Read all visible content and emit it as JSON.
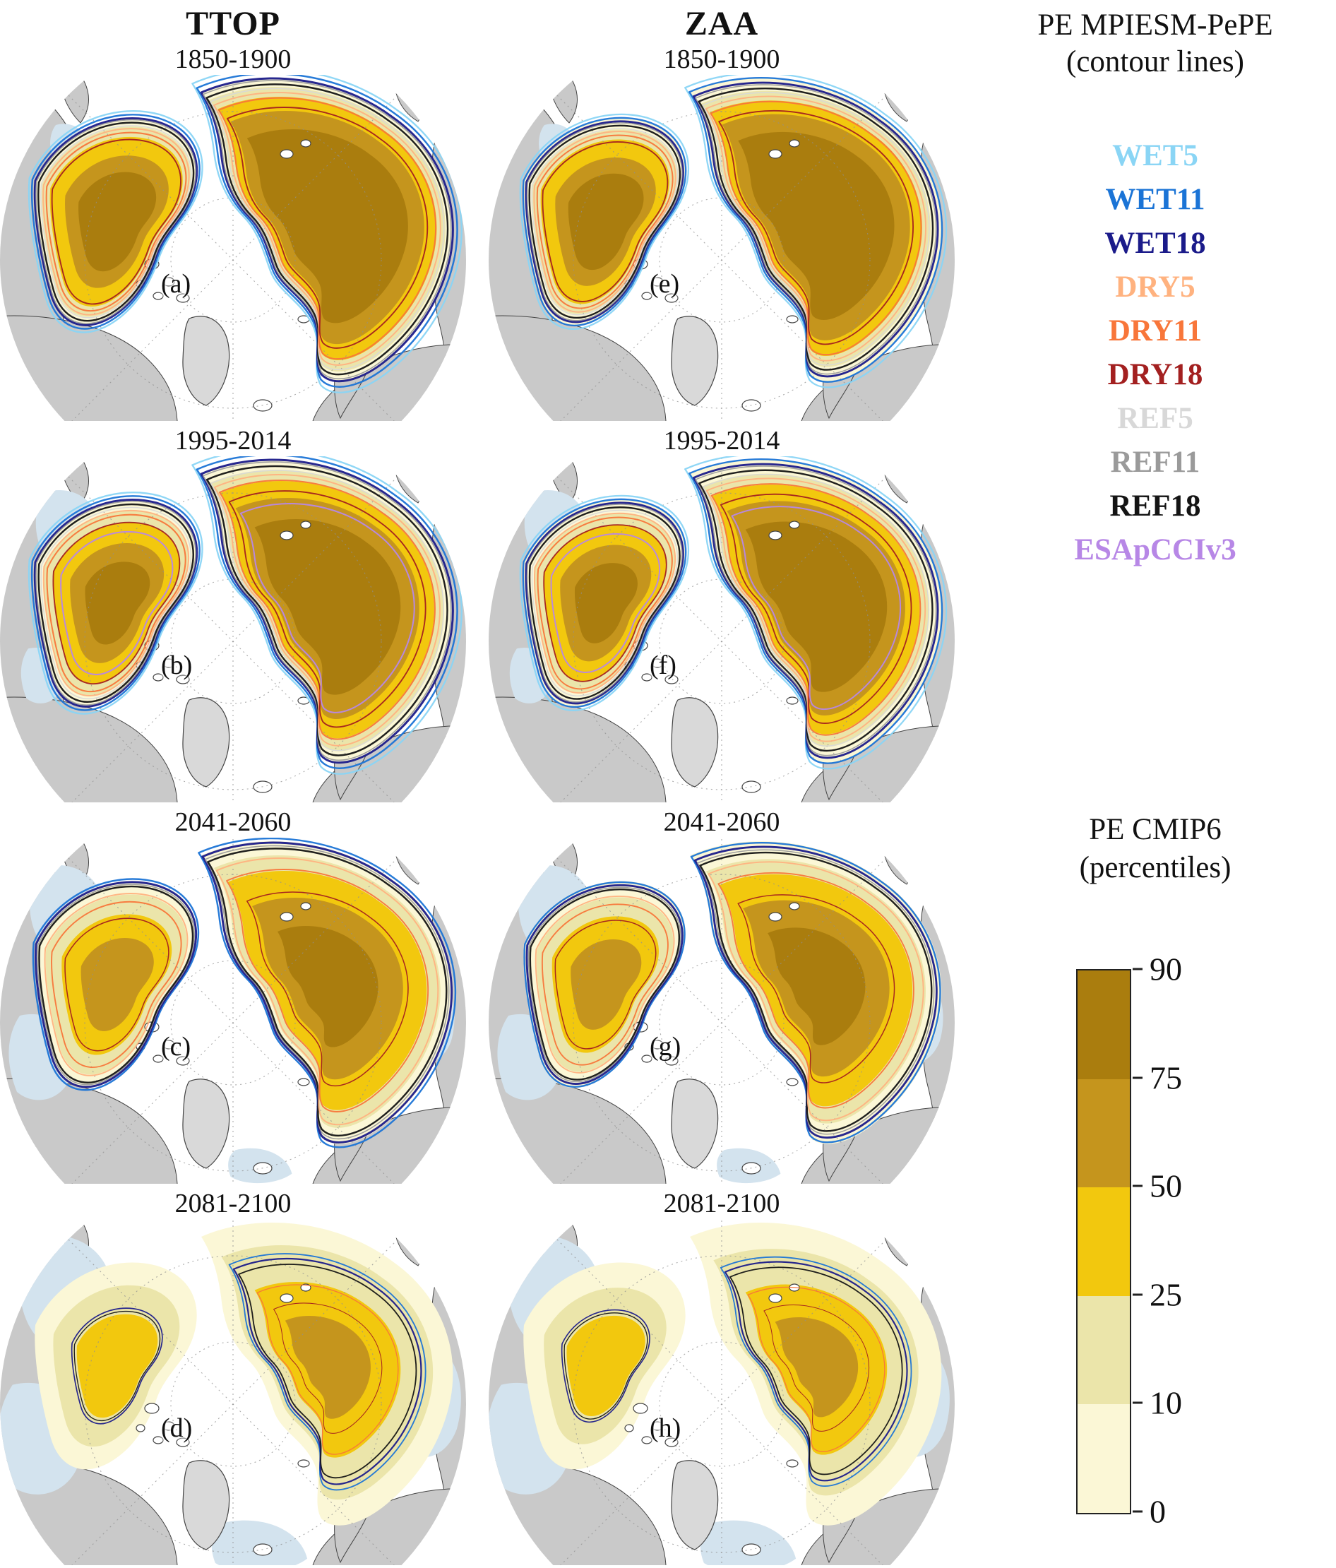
{
  "figure": {
    "columns": [
      {
        "key": "ttop",
        "title": "TTOP"
      },
      {
        "key": "zaa",
        "title": "ZAA"
      }
    ],
    "rows": [
      {
        "period": "1850-1900",
        "panels": [
          "(a)",
          "(e)"
        ]
      },
      {
        "period": "1995-2014",
        "panels": [
          "(b)",
          "(f)"
        ]
      },
      {
        "period": "2041-2060",
        "panels": [
          "(c)",
          "(g)"
        ]
      },
      {
        "period": "2081-2100",
        "panels": [
          "(d)",
          "(h)"
        ]
      }
    ]
  },
  "contour_legend": {
    "title": "PE MPIESM-PePE",
    "subtitle": "(contour lines)",
    "entries": [
      {
        "label": "WET5",
        "color": "#8ad5f5"
      },
      {
        "label": "WET11",
        "color": "#1b74d6"
      },
      {
        "label": "WET18",
        "color": "#1b1b8a"
      },
      {
        "label": "DRY5",
        "color": "#ffb27f"
      },
      {
        "label": "DRY11",
        "color": "#f8763a"
      },
      {
        "label": "DRY18",
        "color": "#a32020"
      },
      {
        "label": "REF5",
        "color": "#d8d8d8"
      },
      {
        "label": "REF11",
        "color": "#9a9a9a"
      },
      {
        "label": "REF18",
        "color": "#141414"
      },
      {
        "label": "ESApCCIv3",
        "color": "#b787e6"
      }
    ]
  },
  "colorbar": {
    "title": "PE CMIP6",
    "subtitle": "(percentiles)",
    "ticks": [
      "90",
      "75",
      "50",
      "25",
      "10",
      "0"
    ],
    "bands": [
      {
        "range": "75-90",
        "color": "#aa7d0e"
      },
      {
        "range": "50-75",
        "color": "#c5951d"
      },
      {
        "range": "25-50",
        "color": "#f2c80e"
      },
      {
        "range": "10-25",
        "color": "#ebe5aa"
      },
      {
        "range": "0-10",
        "color": "#fbf7d6"
      }
    ]
  },
  "map_palette": {
    "land_grey": "#c9c9c9",
    "ocean_white": "#ffffff",
    "pale_blue": "#d3e3ee",
    "coastline": "#444444",
    "graticule": "#909090"
  }
}
